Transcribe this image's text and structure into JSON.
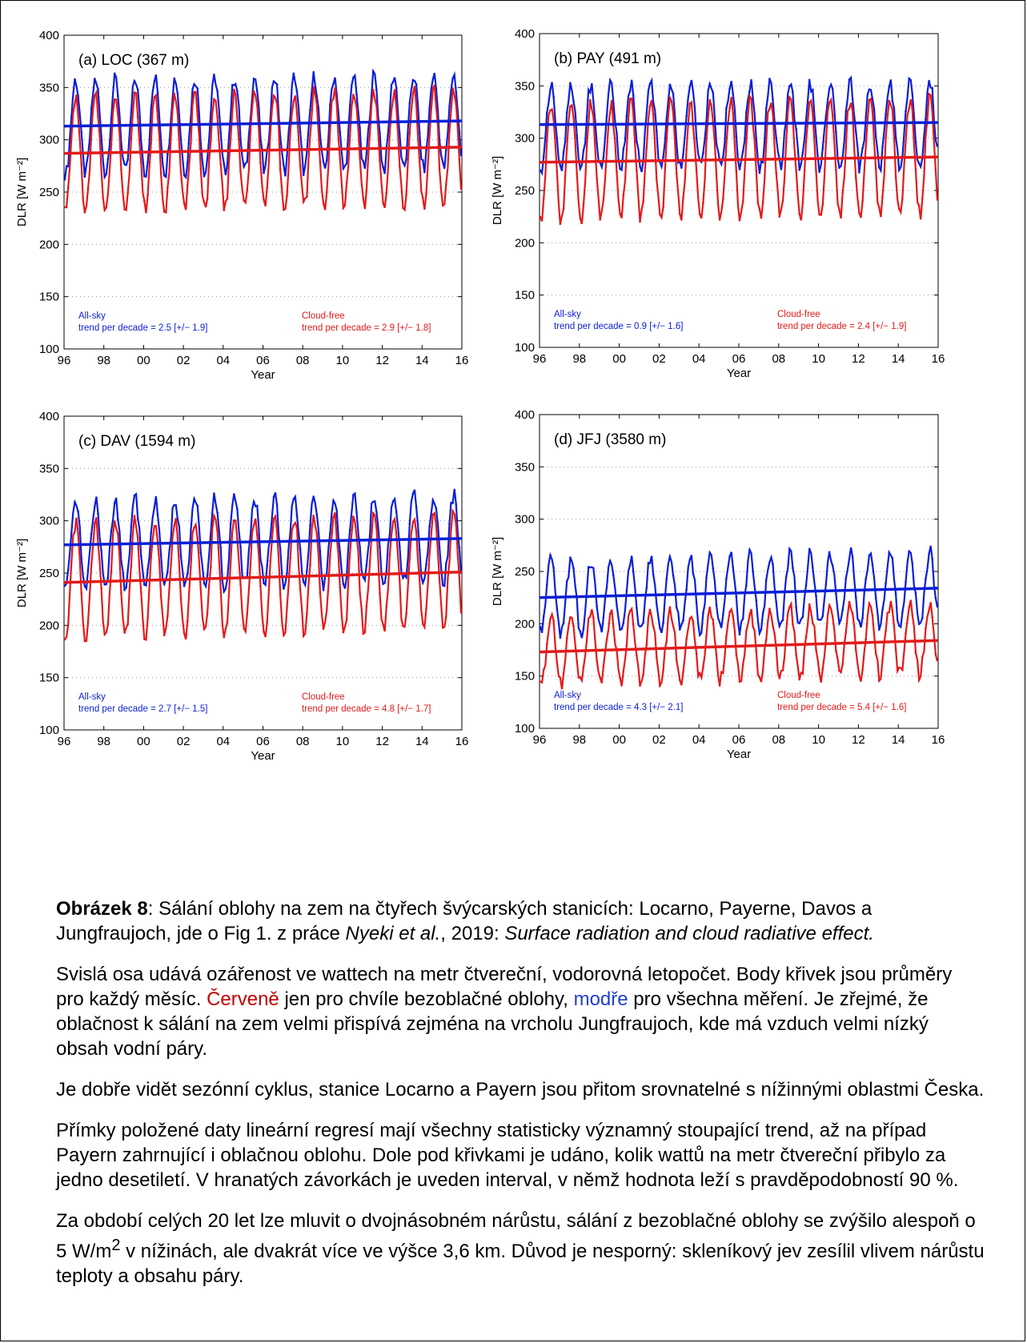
{
  "chart_data": [
    {
      "type": "line",
      "panel_label": "(a) LOC (367 m)",
      "xlabel": "Year",
      "ylabel": "DLR [W m⁻²]",
      "xlim": [
        1996,
        2016
      ],
      "ylim": [
        100,
        400
      ],
      "xtick_labels": [
        "96",
        "98",
        "00",
        "02",
        "04",
        "06",
        "08",
        "10",
        "12",
        "14",
        "16"
      ],
      "ytick_labels": [
        "100",
        "150",
        "200",
        "250",
        "300",
        "350",
        "400"
      ],
      "grid": "dotted horizontal",
      "series": [
        {
          "name": "All-sky",
          "color": "#0a1fd6",
          "seasonal": {
            "mean": 315,
            "amplitude": 45
          },
          "trend_line": {
            "x": [
              1996,
              2016
            ],
            "y": [
              313,
              318
            ]
          },
          "annotation": "trend per decade =  2.5 [+/− 1.9]"
        },
        {
          "name": "Cloud-free",
          "color": "#e31a1a",
          "seasonal": {
            "mean": 290,
            "amplitude": 55
          },
          "trend_line": {
            "x": [
              1996,
              2016
            ],
            "y": [
              287,
              293
            ]
          },
          "annotation": "trend per decade =  2.9 [+/− 1.8]"
        }
      ]
    },
    {
      "type": "line",
      "panel_label": "(b) PAY (491 m)",
      "xlabel": "Year",
      "ylabel": "DLR [W m⁻²]",
      "xlim": [
        1996,
        2016
      ],
      "ylim": [
        100,
        400
      ],
      "xtick_labels": [
        "96",
        "98",
        "00",
        "02",
        "04",
        "06",
        "08",
        "10",
        "12",
        "14",
        "16"
      ],
      "ytick_labels": [
        "100",
        "150",
        "200",
        "250",
        "300",
        "350",
        "400"
      ],
      "grid": "dotted horizontal",
      "series": [
        {
          "name": "All-sky",
          "color": "#0a1fd6",
          "seasonal": {
            "mean": 312,
            "amplitude": 40
          },
          "trend_line": {
            "x": [
              1996,
              2016
            ],
            "y": [
              313,
              315
            ]
          },
          "annotation": "trend per decade =  0.9 [+/− 1.6]"
        },
        {
          "name": "Cloud-free",
          "color": "#e31a1a",
          "seasonal": {
            "mean": 280,
            "amplitude": 55
          },
          "trend_line": {
            "x": [
              1996,
              2016
            ],
            "y": [
              277,
              282
            ]
          },
          "annotation": "trend per decade =  2.4 [+/− 1.9]"
        }
      ]
    },
    {
      "type": "line",
      "panel_label": "(c) DAV (1594 m)",
      "xlabel": "Year",
      "ylabel": "DLR [W m⁻²]",
      "xlim": [
        1996,
        2016
      ],
      "ylim": [
        100,
        400
      ],
      "xtick_labels": [
        "96",
        "98",
        "00",
        "02",
        "04",
        "06",
        "08",
        "10",
        "12",
        "14",
        "16"
      ],
      "ytick_labels": [
        "100",
        "150",
        "200",
        "250",
        "300",
        "350",
        "400"
      ],
      "grid": "dotted horizontal",
      "series": [
        {
          "name": "All-sky",
          "color": "#0a1fd6",
          "seasonal": {
            "mean": 280,
            "amplitude": 42
          },
          "trend_line": {
            "x": [
              1996,
              2016
            ],
            "y": [
              277,
              283
            ]
          },
          "annotation": "trend per decade =  2.7 [+/− 1.5]"
        },
        {
          "name": "Cloud-free",
          "color": "#e31a1a",
          "seasonal": {
            "mean": 248,
            "amplitude": 55
          },
          "trend_line": {
            "x": [
              1996,
              2016
            ],
            "y": [
              241,
              251
            ]
          },
          "annotation": "trend per decade =  4.8 [+/− 1.7]"
        }
      ]
    },
    {
      "type": "line",
      "panel_label": "(d) JFJ (3580 m)",
      "xlabel": "Year",
      "ylabel": "DLR [W m⁻²]",
      "xlim": [
        1996,
        2016
      ],
      "ylim": [
        100,
        400
      ],
      "xtick_labels": [
        "96",
        "98",
        "00",
        "02",
        "04",
        "06",
        "08",
        "10",
        "12",
        "14",
        "16"
      ],
      "ytick_labels": [
        "100",
        "150",
        "200",
        "250",
        "300",
        "350",
        "400"
      ],
      "grid": "dotted horizontal",
      "series": [
        {
          "name": "All-sky",
          "color": "#0a1fd6",
          "seasonal": {
            "mean": 230,
            "amplitude": 35
          },
          "trend_line": {
            "x": [
              1996,
              2016
            ],
            "y": [
              225,
              234
            ]
          },
          "annotation": "trend per decade =  4.3 [+/− 2.1]"
        },
        {
          "name": "Cloud-free",
          "color": "#e31a1a",
          "seasonal": {
            "mean": 180,
            "amplitude": 33
          },
          "trend_line": {
            "x": [
              1996,
              2016
            ],
            "y": [
              173,
              184
            ]
          },
          "annotation": "trend per decade =  5.4 [+/− 1.6]"
        }
      ]
    }
  ],
  "caption": {
    "p1_bold": "Obrázek 8",
    "p1_a": ": Sálání oblohy na zem na čtyřech švýcarských stanicích: Locarno, Payerne, Davos a Jungfraujoch, jde o Fig 1. z práce ",
    "p1_italic1": "Nyeki et al.",
    "p1_b": ", 2019: ",
    "p1_italic2": "Surface radiation and cloud radiative effect.",
    "p2_a": "Svislá osa udává ozářenost ve wattech na metr čtvereční, vodorovná letopočet. Body křivek jsou průměry pro každý měsíc. ",
    "p2_red": "Červeně",
    "p2_b": " jen pro chvíle bezoblačné oblohy, ",
    "p2_blue": "modře",
    "p2_c": " pro všechna měření. Je zřejmé, že oblačnost k sálání na zem velmi přispívá zejména na vrcholu Jungfraujoch, kde má vzduch velmi nízký obsah vodní páry.",
    "p3": "Je dobře vidět sezónní cyklus, stanice Locarno a Payern jsou přitom srovnatelné s nížinnými oblastmi Česka.",
    "p4": "Přímky položené daty lineární regresí mají všechny statisticky významný stoupající trend, až na případ Payern zahrnující i oblačnou oblohu. Dole pod křivkami je udáno, kolik wattů na metr čtvereční přibylo za jedno desetiletí. V hranatých závorkách je uveden interval, v němž hodnota leží s pravděpodobností 90 %.",
    "p5_a": "Za období celých 20 let lze mluvit o dvojnásobném nárůstu, sálání z bezoblačné oblohy se zvýšilo alespoň o 5 W/m",
    "p5_sup": "2",
    "p5_b": " v nížinách, ale dvakrát více ve výšce 3,6 km. Důvod je nesporný: skleníkový jev zesílil vlivem nárůstu teploty a obsahu páry."
  }
}
